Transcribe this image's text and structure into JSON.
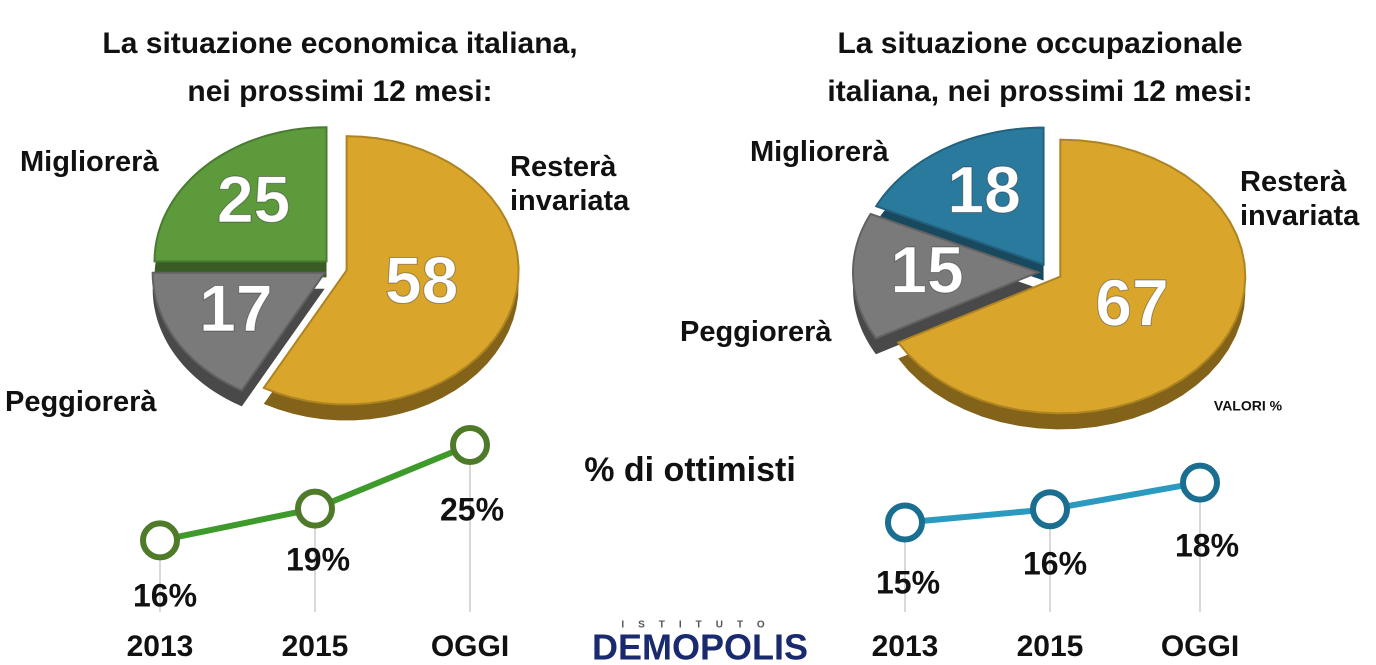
{
  "chart_data": [
    {
      "type": "pie",
      "title": [
        "La situazione economica italiana,",
        "nei prossimi 12 mesi:"
      ],
      "categories": [
        "Resterà invariata",
        "Peggiorerà",
        "Migliorerà"
      ],
      "values": [
        58,
        17,
        25
      ],
      "colors": [
        "#d9a52a",
        "#7a7a7a",
        "#5c9a3c"
      ]
    },
    {
      "type": "pie",
      "title": [
        "La situazione occupazionale",
        "italiana, nei prossimi 12 mesi:"
      ],
      "categories": [
        "Resterà invariata",
        "Peggiorerà",
        "Migliorerà"
      ],
      "values": [
        67,
        15,
        18
      ],
      "colors": [
        "#d9a52a",
        "#7a7a7a",
        "#2a7a9e"
      ]
    },
    {
      "type": "line",
      "categories": [
        "2013",
        "2015",
        "OGGI"
      ],
      "values": [
        16,
        19,
        25
      ],
      "value_labels": [
        "16%",
        "19%",
        "25%"
      ],
      "color": "#3e9a2a",
      "marker_color": "#4e7a2a"
    },
    {
      "type": "line",
      "categories": [
        "2013",
        "2015",
        "OGGI"
      ],
      "values": [
        15,
        16,
        18
      ],
      "value_labels": [
        "15%",
        "16%",
        "18%"
      ],
      "color": "#2a9ac0",
      "marker_color": "#1a6e90"
    }
  ],
  "annotation": "% di ottimisti",
  "units_note": "VALORI %",
  "logo": {
    "top": "ISTITUTO",
    "name": "DEMOPOLIS"
  }
}
